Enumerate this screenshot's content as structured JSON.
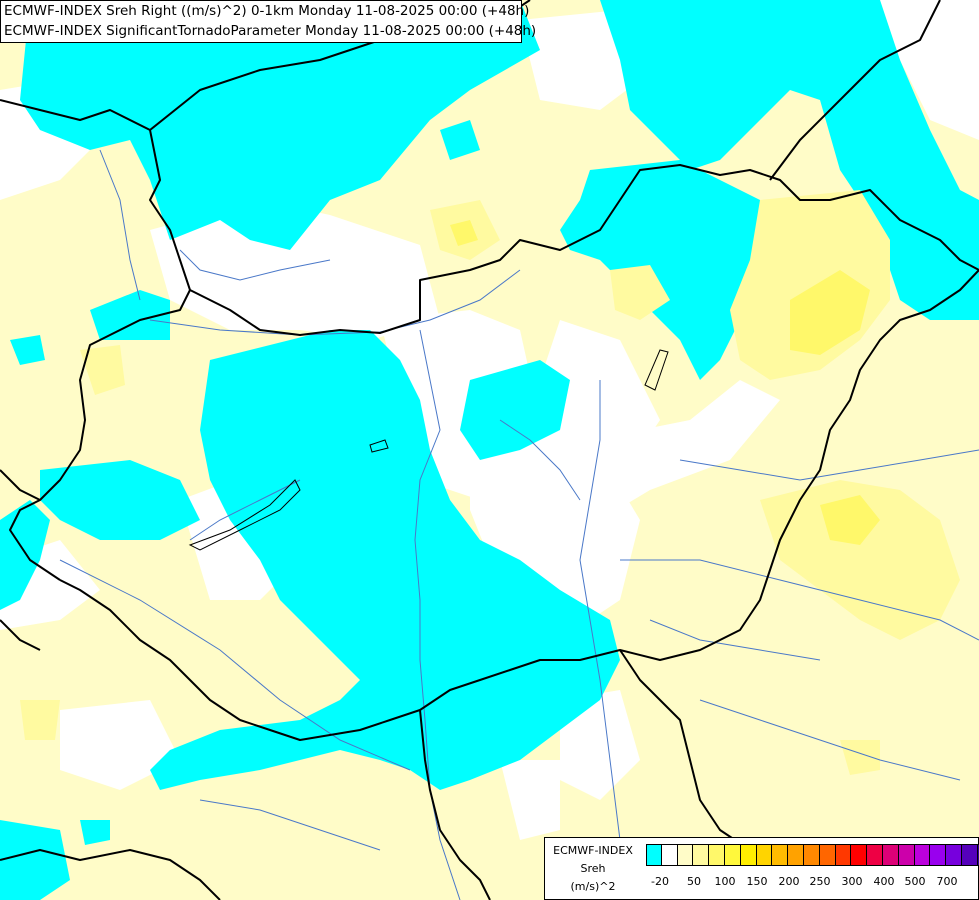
{
  "map": {
    "title_line_1": "ECMWF-INDEX Sreh Right ((m/s)^2) 0-1km Monday 11-08-2025 00:00 (+48h)",
    "title_line_2": "ECMWF-INDEX SignificantTornadoParameter Monday 11-08-2025 00:00 (+48h)",
    "region": "Hungary and surroundings",
    "colors": {
      "low_negative": "#00ffff",
      "near_zero": "#ffffff",
      "pale_yellow": "#fffcc8",
      "light_yellow": "#fffaa0",
      "yellow": "#fff86a",
      "border": "#000000",
      "river": "#4a78c8"
    }
  },
  "legend": {
    "source": "ECMWF-INDEX",
    "variable": "Sreh",
    "unit": "(m/s)^2",
    "colors": [
      "#00ffff",
      "#ffffff",
      "#fffcc8",
      "#fffaa0",
      "#fff86a",
      "#fff83c",
      "#ffee00",
      "#ffd400",
      "#ffbb00",
      "#ffa200",
      "#ff8800",
      "#ff6600",
      "#ff3800",
      "#ff0000",
      "#ee0044",
      "#dd0077",
      "#cc00aa",
      "#bb00dd",
      "#9900ee",
      "#7700dd",
      "#5500bb",
      "#330099",
      "#1a0088",
      "#000077"
    ],
    "ticks": [
      "-20",
      "50",
      "100",
      "150",
      "200",
      "250",
      "300",
      "400",
      "500",
      "700"
    ]
  }
}
